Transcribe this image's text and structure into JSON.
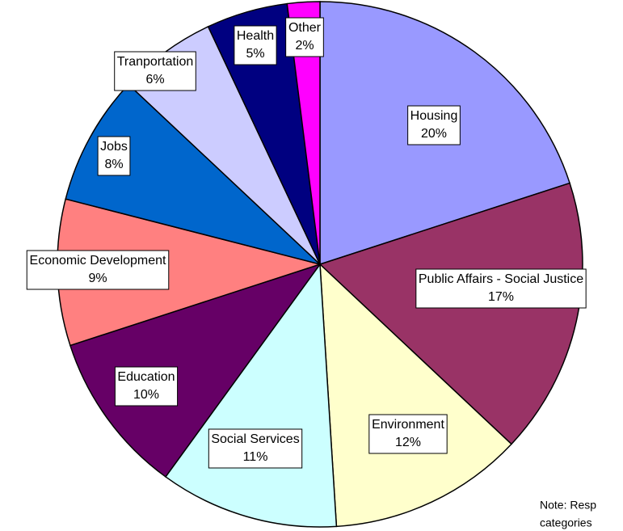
{
  "chart_data": {
    "type": "pie",
    "categories": [
      "Housing",
      "Public Affairs - Social Justice",
      "Environment",
      "Social Services",
      "Education",
      "Economic Development",
      "Jobs",
      "Tranportation",
      "Health",
      "Other"
    ],
    "values": [
      20,
      17,
      12,
      11,
      10,
      9,
      8,
      6,
      5,
      2
    ],
    "value_labels": [
      "20%",
      "17%",
      "12%",
      "11%",
      "10%",
      "9%",
      "8%",
      "6%",
      "5%",
      "2%"
    ],
    "colors": [
      "#9999ff",
      "#993366",
      "#ffffcc",
      "#ccffff",
      "#660066",
      "#ff8080",
      "#0066cc",
      "#ccccff",
      "#000080",
      "#ff00ff"
    ],
    "annotations": [
      "Note: Resp",
      "categories"
    ]
  }
}
